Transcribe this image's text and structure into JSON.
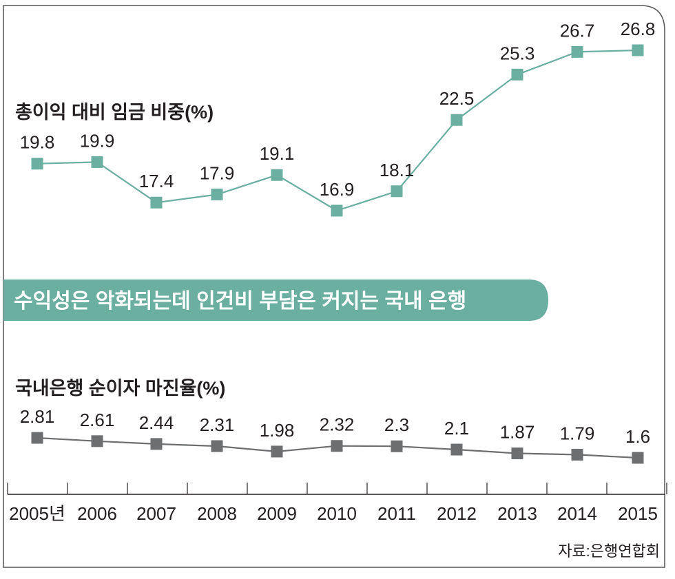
{
  "colors": {
    "teal": "#6aafa0",
    "gray": "#6d6e70",
    "text": "#231f20",
    "frame": "#555555",
    "banner_text": "#ffffff"
  },
  "banner": {
    "title": "수익성은 악화되는데 인건비 부담은 커지는 국내 은행"
  },
  "source": "자료:은행연합회",
  "chart_data": [
    {
      "type": "line",
      "title": "총이익 대비 임금 비중(%)",
      "x": [
        "2005년",
        "2006",
        "2007",
        "2008",
        "2009",
        "2010",
        "2011",
        "2012",
        "2013",
        "2014",
        "2015"
      ],
      "values": [
        19.8,
        19.9,
        17.4,
        17.9,
        19.1,
        16.9,
        18.1,
        22.5,
        25.3,
        26.7,
        26.8
      ],
      "labels": [
        "19.8",
        "19.9",
        "17.4",
        "17.9",
        "19.1",
        "16.9",
        "18.1",
        "22.5",
        "25.3",
        "26.7",
        "26.8"
      ],
      "color": "#6aafa0",
      "grid": false,
      "marker": "square"
    },
    {
      "type": "line",
      "title": "국내은행 순이자 마진율(%)",
      "x": [
        "2005년",
        "2006",
        "2007",
        "2008",
        "2009",
        "2010",
        "2011",
        "2012",
        "2013",
        "2014",
        "2015"
      ],
      "values": [
        2.81,
        2.61,
        2.44,
        2.31,
        1.98,
        2.32,
        2.3,
        2.1,
        1.87,
        1.79,
        1.6
      ],
      "labels": [
        "2.81",
        "2.61",
        "2.44",
        "2.31",
        "1.98",
        "2.32",
        "2.3",
        "2.1",
        "1.87",
        "1.79",
        "1.6"
      ],
      "color": "#6d6e70",
      "grid": false,
      "marker": "square"
    }
  ]
}
